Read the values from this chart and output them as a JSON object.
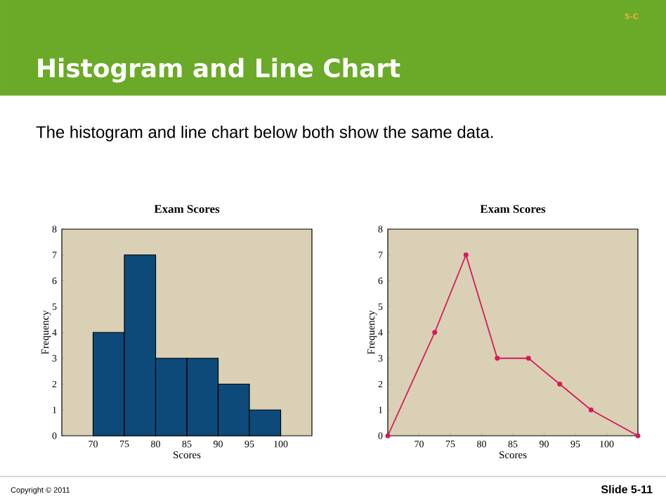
{
  "chart_data": [
    {
      "type": "histogram",
      "title": "Exam Scores",
      "xlabel": "Scores",
      "ylabel": "Frequency",
      "bins": [
        70,
        75,
        80,
        85,
        90,
        95,
        100
      ],
      "values": [
        4,
        7,
        3,
        3,
        2,
        1
      ],
      "color": "#0d4a7a",
      "xlim": [
        65,
        105
      ],
      "xticks": [
        70,
        75,
        80,
        85,
        90,
        95,
        100
      ],
      "ylim": [
        0,
        8
      ],
      "yticks": [
        0,
        1,
        2,
        3,
        4,
        5,
        6,
        7,
        8
      ],
      "annotations": [
        "5-C",
        "Histogram and Line Chart",
        "The histogram and line chart below both show the same data.",
        "Copyright © 2011",
        "Slide 5-11"
      ]
    },
    {
      "type": "line",
      "title": "Exam Scores",
      "xlabel": "Scores",
      "ylabel": "Frequency",
      "x": [
        65,
        72.5,
        77.5,
        82.5,
        87.5,
        92.5,
        97.5,
        105
      ],
      "values": [
        0,
        4,
        7,
        3,
        3,
        2,
        1,
        0
      ],
      "color": "#d6195a",
      "marker": "circle",
      "xlim": [
        65,
        105
      ],
      "xticks": [
        70,
        75,
        80,
        85,
        90,
        95,
        100
      ],
      "ylim": [
        0,
        8
      ],
      "yticks": [
        0,
        1,
        2,
        3,
        4,
        5,
        6,
        7,
        8
      ]
    }
  ]
}
